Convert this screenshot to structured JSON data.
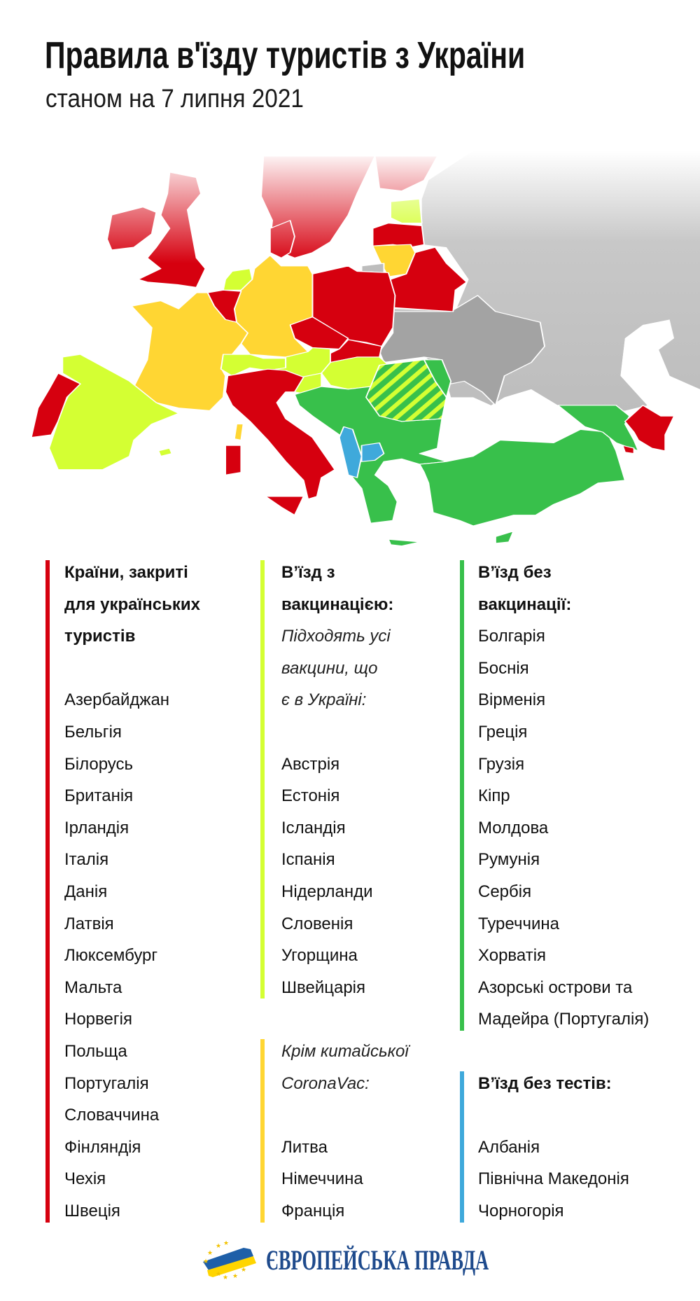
{
  "header": {
    "title": "Правила в'їзду туристів з України",
    "subtitle": "станом на 7 липня 2021"
  },
  "colors": {
    "closed": "#d6000f",
    "vaccination": "#d4ff33",
    "no_coronavac": "#ffd633",
    "no_vaccination": "#38c04b",
    "no_tests": "#3fa9db",
    "neutral": "#a3a3a3"
  },
  "legend": {
    "closed": {
      "heading": [
        "Країни, закриті",
        "для українських",
        "туристів"
      ],
      "items": [
        "Азербайджан",
        "Бельгія",
        "Білорусь",
        "Британія",
        "Ірландія",
        "Італія",
        "Данія",
        "Латвія",
        "Люксембург",
        "Мальта",
        "Норвегія",
        "Польща",
        "Португалія",
        "Словаччина",
        "Фінляндія",
        "Чехія",
        "Швеція"
      ]
    },
    "vaccination": {
      "heading": [
        "В’їзд з",
        "вакцинацією:"
      ],
      "note": [
        "Підходять усі",
        "вакцини, що",
        "є в Україні:"
      ],
      "items": [
        "Австрія",
        "Естонія",
        "Ісландія",
        "Іспанія",
        "Нідерланди",
        "Словенія",
        "Угорщина",
        "Швейцарія"
      ]
    },
    "no_coronavac": {
      "note": [
        "Крім китайської",
        "CoronaVac:"
      ],
      "items": [
        "Литва",
        "Німеччина",
        "Франція"
      ]
    },
    "no_vaccination": {
      "heading": [
        "В’їзд без",
        "вакцинації:"
      ],
      "items": [
        "Болгарія",
        "Боснія",
        "Вірменія",
        "Греція",
        "Грузія",
        "Кіпр",
        "Молдова",
        "Румунія",
        "Сербія",
        "Туреччина",
        "Хорватія",
        "Азорські острови та",
        "Мадейра (Португалія)"
      ]
    },
    "no_tests": {
      "heading": [
        "В’їзд без тестів:"
      ],
      "items": [
        "Албанія",
        "Північна Македонія",
        "Чорногорія"
      ]
    }
  },
  "footer": {
    "logo_text": "ЄВРОПЕЙСЬКА ПРАВДА"
  }
}
